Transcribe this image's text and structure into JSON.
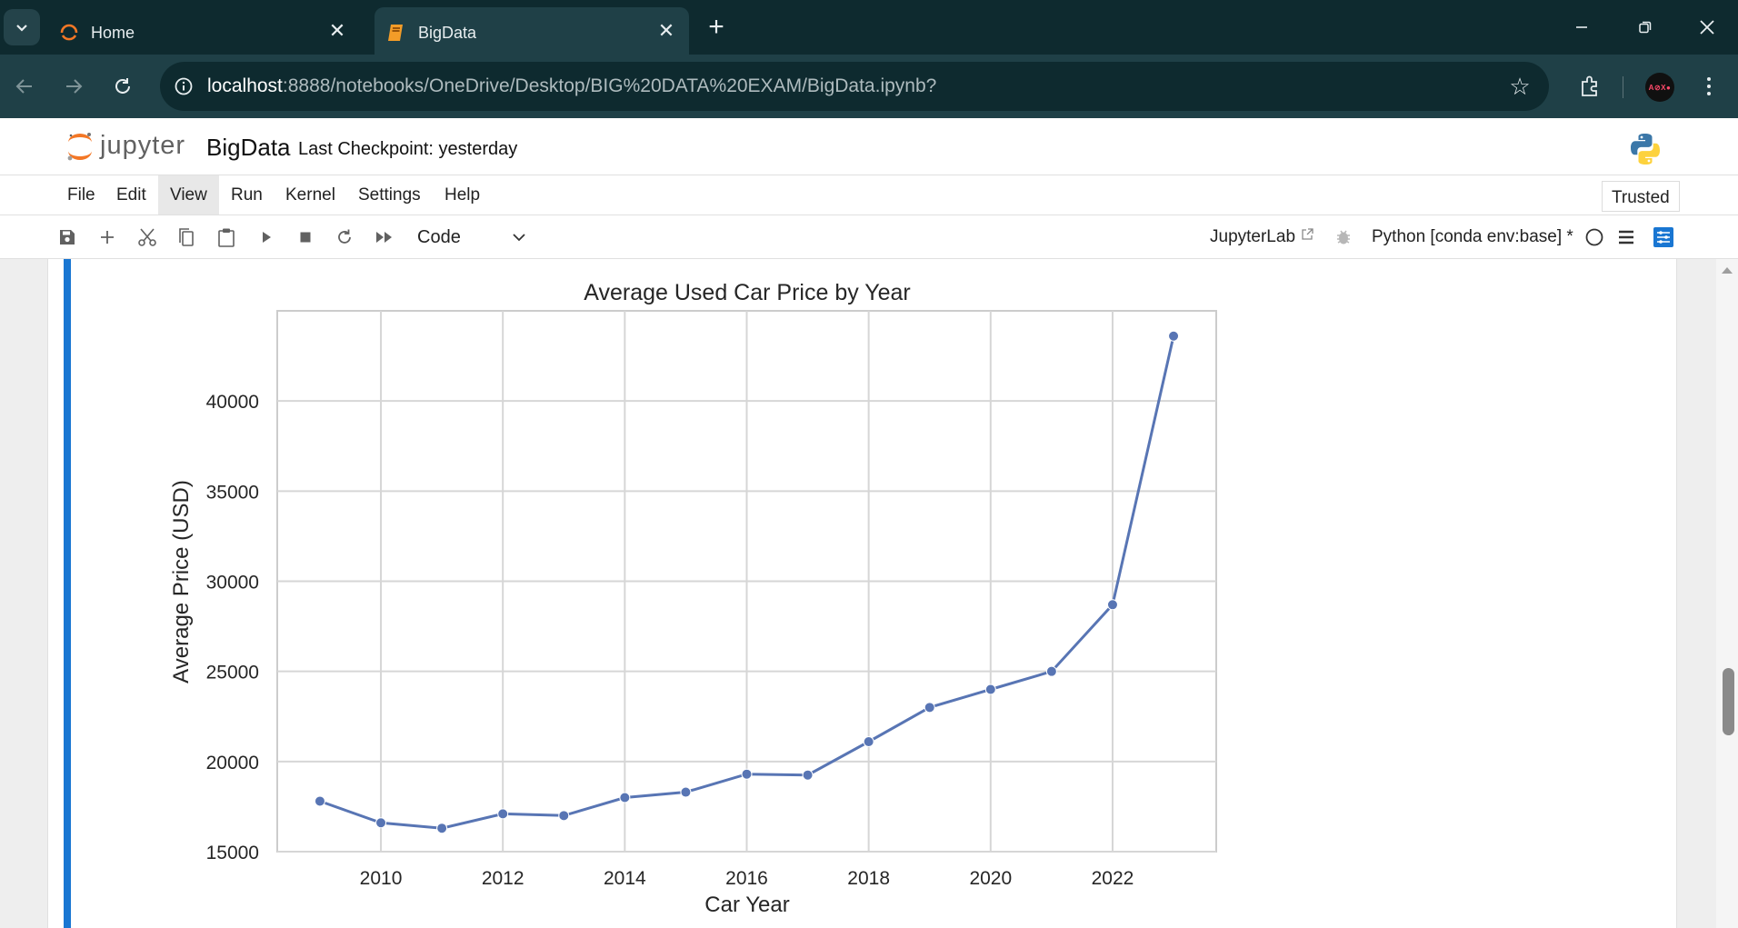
{
  "browser": {
    "tabs": [
      {
        "title": "Home",
        "icon": "jupyter-loader-icon",
        "active": false
      },
      {
        "title": "BigData",
        "icon": "notebook-icon",
        "active": true
      }
    ],
    "address": {
      "host": "localhost",
      "rest": ":8888/notebooks/OneDrive/Desktop/BIG%20DATA%20EXAM/BigData.ipynb?"
    },
    "profile_initials": "A⊘X●"
  },
  "jupyter": {
    "logo_text": "jupyter",
    "notebook_name": "BigData",
    "checkpoint": "Last Checkpoint: yesterday",
    "menu": [
      "File",
      "Edit",
      "View",
      "Run",
      "Kernel",
      "Settings",
      "Help"
    ],
    "trusted": "Trusted",
    "cell_type": "Code",
    "jupyterlab_link": "JupyterLab",
    "kernel": "Python [conda env:base] *"
  },
  "colors": {
    "accent": "#1976d2",
    "series": "#5875b4",
    "chrome_dark": "#0e2a2f",
    "chrome_mid": "#1f4047"
  },
  "chart_data": {
    "type": "line",
    "title": "Average Used Car Price by Year",
    "xlabel": "Car Year",
    "ylabel": "Average Price (USD)",
    "x": [
      2009,
      2010,
      2011,
      2012,
      2013,
      2014,
      2015,
      2016,
      2017,
      2018,
      2019,
      2020,
      2021,
      2022,
      2023
    ],
    "y": [
      17800,
      16600,
      16300,
      17100,
      17000,
      18000,
      18300,
      19300,
      19250,
      21100,
      23000,
      24000,
      25000,
      28700,
      43600
    ],
    "xticks": [
      2010,
      2012,
      2014,
      2016,
      2018,
      2020,
      2022
    ],
    "yticks": [
      15000,
      20000,
      25000,
      30000,
      35000,
      40000
    ],
    "xlim": [
      2008.3,
      2023.7
    ],
    "ylim": [
      15000,
      45000
    ],
    "grid": true
  }
}
